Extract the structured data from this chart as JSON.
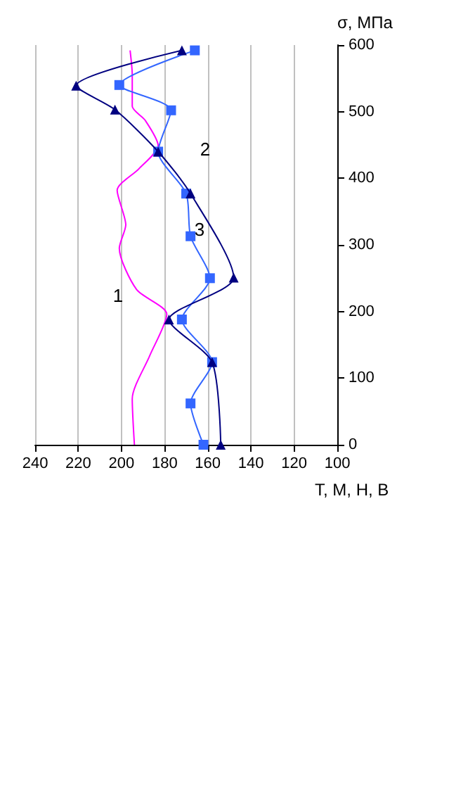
{
  "chart_data": {
    "type": "line",
    "xlabel": "Т, М, Н, В",
    "ylabel": "σ, МПа",
    "xlim": [
      240,
      100
    ],
    "xticks": [
      240,
      220,
      200,
      180,
      160,
      140,
      120,
      100
    ],
    "ylim": [
      0,
      600
    ],
    "yticks": [
      0,
      100,
      200,
      300,
      400,
      500,
      600
    ],
    "grid": "x",
    "series": [
      {
        "color": "#000080",
        "marker": "triangle",
        "x": [
          154,
          158,
          178,
          148,
          168,
          183,
          203,
          221,
          172
        ],
        "values": [
          0,
          124,
          188,
          251,
          377,
          440,
          503,
          539,
          592
        ]
      },
      {
        "color": "#3366ff",
        "marker": "square",
        "x": [
          162,
          168,
          158,
          172,
          159,
          168,
          170,
          183,
          177,
          201,
          166
        ],
        "values": [
          0,
          62,
          124,
          188,
          250,
          313,
          377,
          440,
          502,
          540,
          592
        ]
      },
      {
        "color": "#ff00ff",
        "marker": "none",
        "x": [
          194,
          195,
          187,
          179,
          193,
          201,
          198,
          202,
          192,
          183,
          189,
          195,
          195,
          196
        ],
        "values": [
          0,
          69,
          133,
          196,
          233,
          295,
          330,
          382,
          414,
          449,
          487,
          508,
          555,
          592
        ]
      }
    ],
    "annotations": [
      "1",
      "2",
      "3"
    ]
  }
}
